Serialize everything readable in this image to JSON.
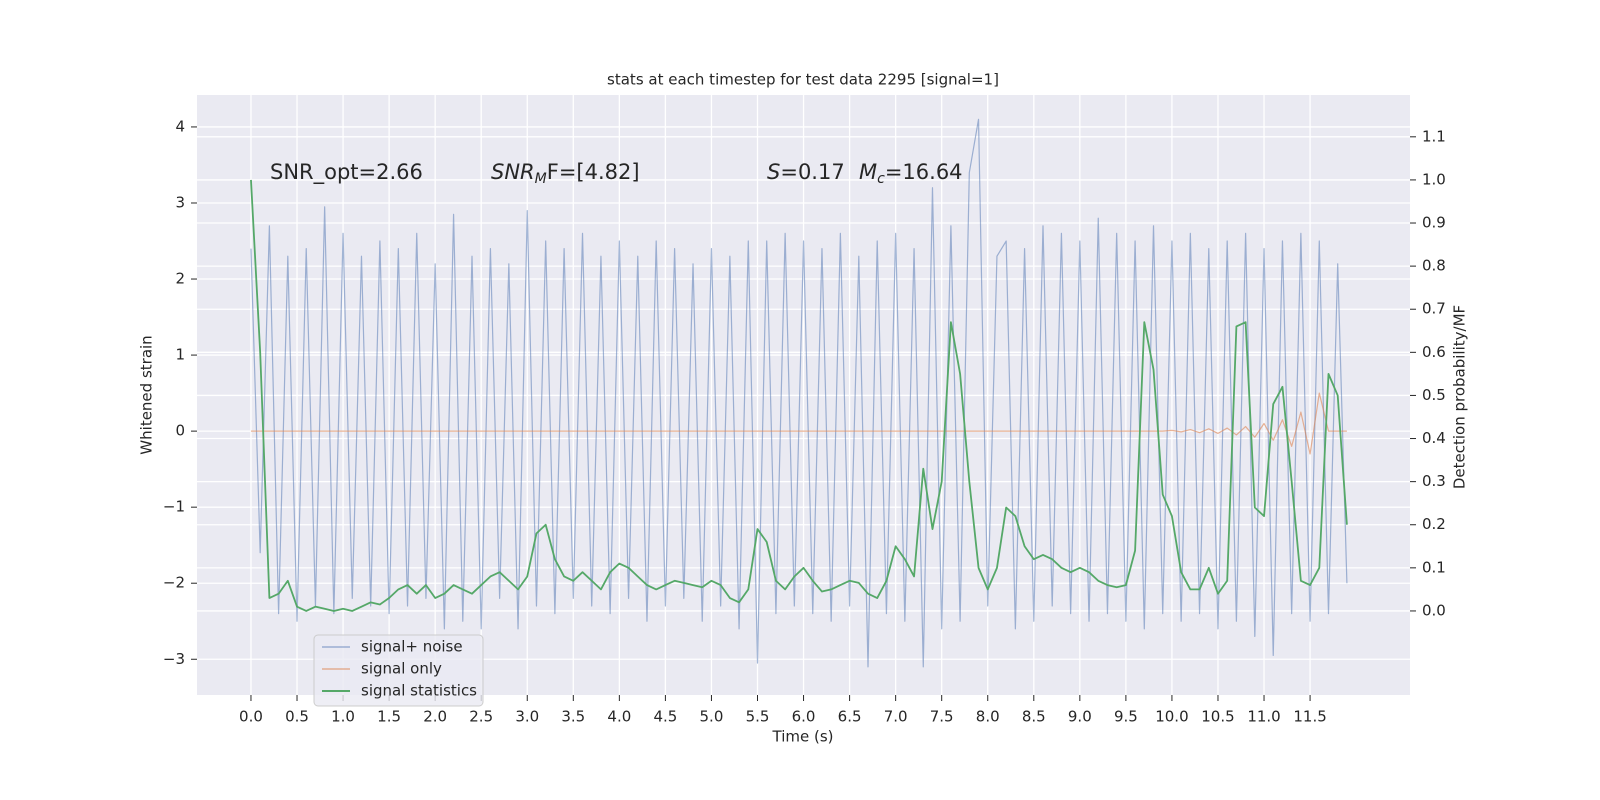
{
  "chart_data": {
    "type": "line",
    "title": "stats at each timestep for test data 2295 [signal=1]",
    "xlabel": "Time (s)",
    "ylabel": "Whitened strain",
    "y2label": "Detection probability/MF",
    "annotations": [
      {
        "text": "SNR_opt=2.66"
      },
      {
        "base": "SNR",
        "sub": "M",
        "rest": "F=[4.82]"
      },
      {
        "base": "S",
        "rest": "=0.17"
      },
      {
        "base": "M",
        "sub": "c",
        "rest": "=16.64"
      }
    ],
    "legend": "lower left",
    "grid": true,
    "xlim": [
      -0.586,
      12.585
    ],
    "ylim": [
      -3.47,
      4.42
    ],
    "y2lim": [
      -0.195,
      1.197
    ],
    "xticks": [
      {
        "value": 0,
        "label": "0.0"
      },
      0.5,
      {
        "value": 1,
        "label": "1.0"
      },
      1.5,
      {
        "value": 2,
        "label": "2.0"
      },
      2.5,
      {
        "value": 3,
        "label": "3.0"
      },
      3.5,
      {
        "value": 4,
        "label": "4.0"
      },
      4.5,
      {
        "value": 5,
        "label": "5.0"
      },
      5.5,
      {
        "value": 6,
        "label": "6.0"
      },
      6.5,
      {
        "value": 7,
        "label": "7.0"
      },
      7.5,
      {
        "value": 8,
        "label": "8.0"
      },
      8.5,
      {
        "value": 9,
        "label": "9.0"
      },
      9.5,
      {
        "value": 10,
        "label": "10.0"
      },
      10.5,
      {
        "value": 11,
        "label": "11.0"
      },
      11.5
    ],
    "yticks": [
      {
        "value": -3,
        "label": "−3"
      },
      {
        "value": -2,
        "label": "−2"
      },
      {
        "value": -1,
        "label": "−1"
      },
      0,
      1,
      2,
      3,
      4
    ],
    "y2ticks": [
      {
        "value": 0,
        "label": "0.0"
      },
      0.1,
      0.2,
      0.3,
      0.4,
      0.5,
      0.6,
      0.7,
      0.8,
      0.9,
      {
        "value": 1,
        "label": "1.0"
      },
      1.1
    ],
    "x": [
      0,
      0.1,
      0.2,
      0.3,
      0.4,
      0.5,
      0.6,
      0.7,
      0.8,
      0.9,
      1,
      1.1,
      1.2,
      1.3,
      1.4,
      1.5,
      1.6,
      1.7,
      1.8,
      1.9,
      2,
      2.1,
      2.2,
      2.3,
      2.4,
      2.5,
      2.6,
      2.7,
      2.8,
      2.9,
      3,
      3.1,
      3.2,
      3.3,
      3.4,
      3.5,
      3.6,
      3.7,
      3.8,
      3.9,
      4,
      4.1,
      4.2,
      4.3,
      4.4,
      4.5,
      4.6,
      4.7,
      4.8,
      4.9,
      5,
      5.1,
      5.2,
      5.3,
      5.4,
      5.5,
      5.6,
      5.7,
      5.8,
      5.9,
      6,
      6.1,
      6.2,
      6.3,
      6.4,
      6.5,
      6.6,
      6.7,
      6.8,
      6.9,
      7,
      7.1,
      7.2,
      7.3,
      7.4,
      7.5,
      7.6,
      7.7,
      7.8,
      7.9,
      8,
      8.1,
      8.2,
      8.3,
      8.4,
      8.5,
      8.6,
      8.7,
      8.8,
      8.9,
      9,
      9.1,
      9.2,
      9.3,
      9.4,
      9.5,
      9.6,
      9.7,
      9.8,
      9.9,
      10,
      10.1,
      10.2,
      10.3,
      10.4,
      10.5,
      10.6,
      10.7,
      10.8,
      10.9,
      11,
      11.1,
      11.2,
      11.3,
      11.4,
      11.5,
      11.6,
      11.7,
      11.8,
      11.9
    ],
    "series": [
      {
        "name": "signal+ noise",
        "color": "#4c72b0",
        "axis": "y",
        "values": [
          2.4,
          -1.6,
          2.7,
          -2.4,
          2.3,
          -2.5,
          2.4,
          -2.3,
          2.95,
          -2.4,
          2.6,
          -2.2,
          2.3,
          -2.3,
          2.5,
          -2.4,
          2.4,
          -2.3,
          2.6,
          -2.2,
          2.2,
          -2.6,
          2.85,
          -2.5,
          2.3,
          -2.6,
          2.4,
          -2.2,
          2.2,
          -2.6,
          2.9,
          -2.3,
          2.5,
          -2.4,
          2.4,
          -2.2,
          2.6,
          -2.3,
          2.3,
          -2.4,
          2.5,
          -2.2,
          2.3,
          -2.5,
          2.5,
          -2.3,
          2.4,
          -2.2,
          2.2,
          -2.5,
          2.4,
          -2.3,
          2.3,
          -2.6,
          2.5,
          -3.05,
          2.5,
          -2.4,
          2.6,
          -2.3,
          2.5,
          -2.4,
          2.4,
          -2.5,
          2.6,
          -2.3,
          2.3,
          -3.1,
          2.5,
          -2.4,
          2.6,
          -2.5,
          2.4,
          -3.1,
          3.2,
          -2.6,
          2.7,
          -2.5,
          3.4,
          4.1,
          -2.3,
          2.3,
          2.5,
          -2.6,
          2.4,
          -2.5,
          2.7,
          -2.3,
          2.6,
          -2.4,
          2.5,
          -2.5,
          2.8,
          -2.4,
          2.6,
          -2.5,
          2.5,
          -2.6,
          2.7,
          -2.4,
          2.5,
          -2.5,
          2.6,
          -2.4,
          2.4,
          -2.6,
          2.5,
          -2.5,
          2.6,
          -2.7,
          2.4,
          -2.95,
          2.5,
          -2.4,
          2.6,
          -2.5,
          2.5,
          -2.4,
          2.2,
          -2.0
        ]
      },
      {
        "name": "signal only",
        "color": "#dd8452",
        "axis": "y",
        "values": [
          0,
          0,
          0,
          0,
          0,
          0,
          0,
          0,
          0,
          0,
          0,
          0,
          0,
          0,
          0,
          0,
          0,
          0,
          0,
          0,
          0,
          0,
          0,
          0,
          0,
          0,
          0,
          0,
          0,
          0,
          0,
          0,
          0,
          0,
          0,
          0,
          0,
          0,
          0,
          0,
          0,
          0,
          0,
          0,
          0,
          0,
          0,
          0,
          0,
          0,
          0,
          0,
          0,
          0,
          0,
          0,
          0,
          0,
          0,
          0,
          0,
          0,
          0,
          0,
          0,
          0,
          0,
          0,
          0,
          0,
          0,
          0,
          0,
          0,
          0,
          0,
          0,
          0,
          0,
          0,
          0,
          0,
          0,
          0,
          0,
          0,
          0,
          0,
          0,
          0,
          0,
          0,
          0,
          0,
          0,
          0,
          0,
          0,
          0,
          0,
          0.01,
          -0.01,
          0.02,
          -0.02,
          0.03,
          -0.03,
          0.04,
          -0.05,
          0.06,
          -0.08,
          0.1,
          -0.12,
          0.15,
          -0.2,
          0.25,
          -0.3,
          0.5,
          0,
          0,
          0
        ]
      },
      {
        "name": "signal statistics",
        "color": "#55a868",
        "axis": "y2",
        "values": [
          1.0,
          0.6,
          0.03,
          0.04,
          0.07,
          0.01,
          0.0,
          0.01,
          0.005,
          0.0,
          0.005,
          0.0,
          0.01,
          0.02,
          0.015,
          0.03,
          0.05,
          0.06,
          0.04,
          0.06,
          0.03,
          0.04,
          0.06,
          0.05,
          0.04,
          0.06,
          0.08,
          0.09,
          0.07,
          0.05,
          0.08,
          0.18,
          0.2,
          0.12,
          0.08,
          0.07,
          0.09,
          0.07,
          0.05,
          0.09,
          0.11,
          0.1,
          0.08,
          0.06,
          0.05,
          0.06,
          0.07,
          0.065,
          0.06,
          0.055,
          0.07,
          0.06,
          0.03,
          0.02,
          0.05,
          0.19,
          0.16,
          0.07,
          0.05,
          0.08,
          0.1,
          0.07,
          0.045,
          0.05,
          0.06,
          0.07,
          0.065,
          0.04,
          0.03,
          0.07,
          0.15,
          0.12,
          0.08,
          0.33,
          0.19,
          0.3,
          0.67,
          0.55,
          0.3,
          0.1,
          0.05,
          0.1,
          0.24,
          0.22,
          0.15,
          0.12,
          0.13,
          0.12,
          0.1,
          0.09,
          0.1,
          0.09,
          0.07,
          0.06,
          0.055,
          0.06,
          0.14,
          0.67,
          0.56,
          0.27,
          0.22,
          0.09,
          0.05,
          0.05,
          0.1,
          0.04,
          0.07,
          0.66,
          0.67,
          0.24,
          0.22,
          0.48,
          0.52,
          0.3,
          0.07,
          0.06,
          0.1,
          0.55,
          0.5,
          0.2
        ]
      }
    ]
  }
}
